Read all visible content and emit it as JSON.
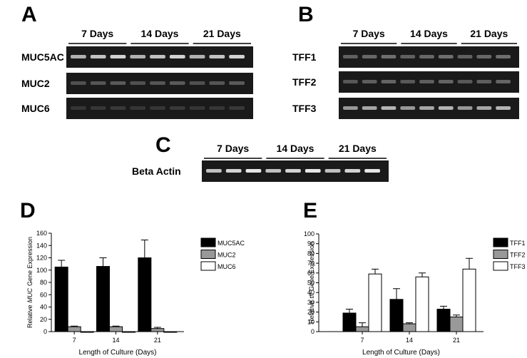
{
  "panels": {
    "A": "A",
    "B": "B",
    "C": "C"
  },
  "gel_a": {
    "headers": [
      "7 Days",
      "14 Days",
      "21 Days"
    ],
    "rows": [
      "MUC5AC",
      "MUC2",
      "MUC6"
    ]
  },
  "gel_b": {
    "headers": [
      "7 Days",
      "14 Days",
      "21 Days"
    ],
    "rows": [
      "TFF1",
      "TFF2",
      "TFF3"
    ]
  },
  "gel_c": {
    "headers": [
      "7 Days",
      "14 Days",
      "21 Days"
    ],
    "rows": [
      "Beta Actin"
    ]
  },
  "chart_data": [
    {
      "type": "bar",
      "panel": "D",
      "y_label": [
        "Relative",
        "MUC",
        "Gene Expression"
      ],
      "x_label": "Length of Culture (Days)",
      "categories": [
        "7",
        "14",
        "21"
      ],
      "series": [
        {
          "name": "MUC5AC",
          "color": "#000000",
          "values": [
            105,
            106,
            120
          ],
          "errors": [
            11,
            14,
            29
          ]
        },
        {
          "name": "MUC2",
          "color": "#999999",
          "values": [
            8,
            8,
            5
          ],
          "errors": [
            1,
            1,
            2
          ]
        },
        {
          "name": "MUC6",
          "color": "#ffffff",
          "values": [
            0,
            0,
            0
          ],
          "errors": [
            0,
            0,
            0
          ]
        }
      ],
      "ylim": [
        0,
        160
      ],
      "yticks": [
        0,
        20,
        40,
        60,
        80,
        100,
        120,
        140,
        160
      ]
    },
    {
      "type": "bar",
      "panel": "E",
      "y_label": [
        "Relative",
        "tff",
        "Gene Expression"
      ],
      "x_label": "Length of Culture (Days)",
      "categories": [
        "7",
        "14",
        "21"
      ],
      "series": [
        {
          "name": "TFF1",
          "color": "#000000",
          "values": [
            19,
            33,
            23
          ],
          "errors": [
            4,
            11,
            3
          ]
        },
        {
          "name": "TFF2",
          "color": "#999999",
          "values": [
            5,
            8,
            15
          ],
          "errors": [
            4,
            1,
            2
          ]
        },
        {
          "name": "TFF3",
          "color": "#ffffff",
          "values": [
            59,
            56,
            64
          ],
          "errors": [
            5,
            4,
            11
          ]
        }
      ],
      "ylim": [
        0,
        100
      ],
      "yticks": [
        0,
        10,
        20,
        30,
        40,
        50,
        60,
        70,
        80,
        90,
        100
      ]
    }
  ]
}
